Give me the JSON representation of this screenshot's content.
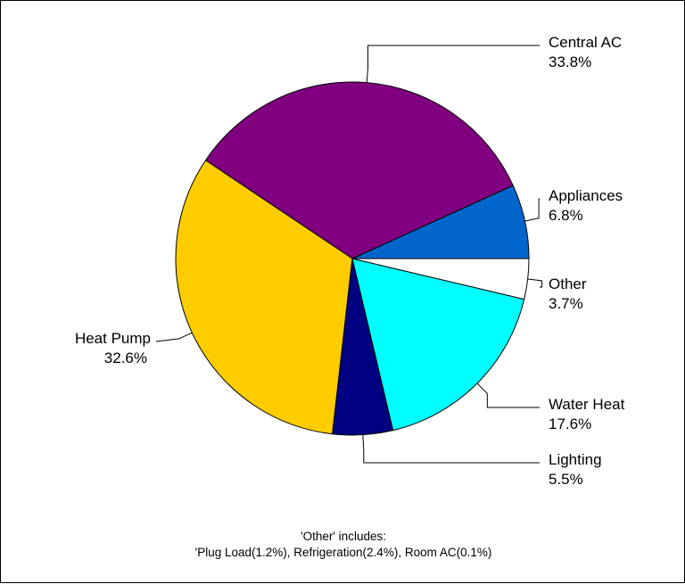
{
  "chart_data": {
    "type": "pie",
    "slices": [
      {
        "label": "Central AC",
        "value_text": "33.8%",
        "value": 33.8,
        "color": "#800080",
        "label_side": "right"
      },
      {
        "label": "Appliances",
        "value_text": "6.8%",
        "value": 6.8,
        "color": "#0066CC",
        "label_side": "right"
      },
      {
        "label": "Other",
        "value_text": "3.7%",
        "value": 3.7,
        "color": "#FFFFFF",
        "label_side": "right"
      },
      {
        "label": "Water Heat",
        "value_text": "17.6%",
        "value": 17.6,
        "color": "#00FFFF",
        "label_side": "right"
      },
      {
        "label": "Lighting",
        "value_text": "5.5%",
        "value": 5.5,
        "color": "#000080",
        "label_side": "right"
      },
      {
        "label": "Heat Pump",
        "value_text": "32.6%",
        "value": 32.6,
        "color": "#FFCC00",
        "label_side": "left"
      }
    ],
    "direction": "clockwise from east, ending at east"
  },
  "footnote": {
    "line1": "'Other' includes:",
    "line2": "'Plug Load(1.2%), Refrigeration(2.4%), Room AC(0.1%)"
  }
}
